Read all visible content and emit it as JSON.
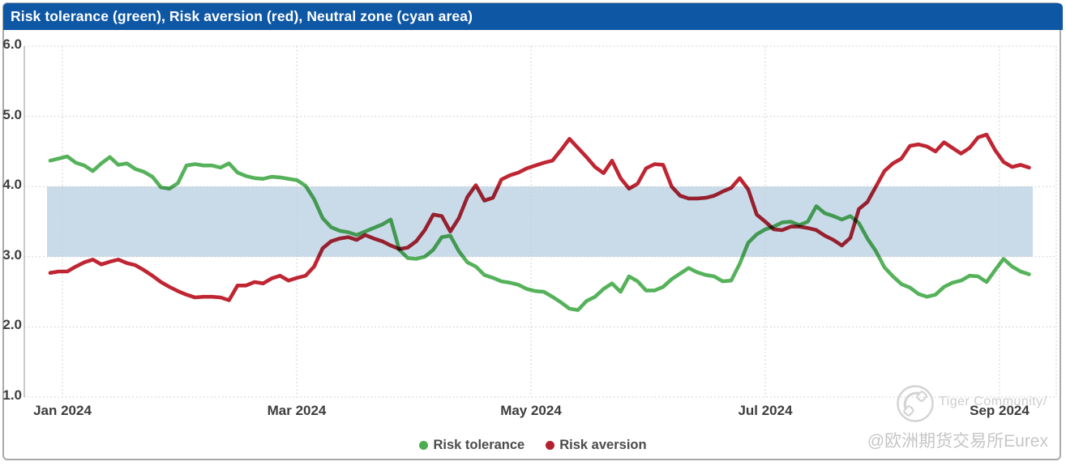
{
  "header": {
    "title": "Risk tolerance (green), Risk aversion (red), Neutral zone (cyan area)",
    "bar_color": "#0e57a5"
  },
  "chart_data": {
    "type": "line",
    "title": "Risk tolerance (green), Risk aversion (red), Neutral zone (cyan area)",
    "xlabel": "",
    "ylabel": "",
    "ylim": [
      1.0,
      6.0
    ],
    "grid": true,
    "y_tick_labels": [
      "6.0",
      "5.0",
      "4.0",
      "3.0",
      "2.0",
      "1.0"
    ],
    "y_tick_values": [
      6,
      5,
      4,
      3,
      2,
      1
    ],
    "x_tick_labels": [
      "Jan 2024",
      "Mar 2024",
      "May 2024",
      "Jul 2024",
      "Sep 2024"
    ],
    "x_span": {
      "start": "late Dec 2023",
      "end": "early Sep 2024",
      "points_spacing_days": 2.2
    },
    "neutral_zone": {
      "label": "Neutral zone",
      "from": 3.0,
      "to": 4.0,
      "color": "#c9dbe9"
    },
    "legend_position": "bottom-center",
    "series": [
      {
        "name": "Risk tolerance",
        "color": "#55b25a",
        "values": [
          4.37,
          4.4,
          4.43,
          4.34,
          4.3,
          4.22,
          4.33,
          4.42,
          4.31,
          4.33,
          4.25,
          4.21,
          4.14,
          3.99,
          3.97,
          4.05,
          4.3,
          4.32,
          4.3,
          4.3,
          4.27,
          4.33,
          4.2,
          4.15,
          4.12,
          4.11,
          4.14,
          4.13,
          4.11,
          4.09,
          4.01,
          3.82,
          3.55,
          3.42,
          3.37,
          3.35,
          3.31,
          3.36,
          3.41,
          3.46,
          3.53,
          3.1,
          2.98,
          2.97,
          3.0,
          3.1,
          3.28,
          3.3,
          3.08,
          2.92,
          2.86,
          2.74,
          2.7,
          2.65,
          2.63,
          2.6,
          2.54,
          2.51,
          2.5,
          2.43,
          2.35,
          2.26,
          2.24,
          2.37,
          2.43,
          2.54,
          2.62,
          2.5,
          2.72,
          2.65,
          2.52,
          2.52,
          2.57,
          2.68,
          2.76,
          2.84,
          2.78,
          2.74,
          2.72,
          2.65,
          2.66,
          2.9,
          3.2,
          3.32,
          3.39,
          3.43,
          3.49,
          3.5,
          3.45,
          3.5,
          3.72,
          3.62,
          3.58,
          3.53,
          3.58,
          3.48,
          3.26,
          3.08,
          2.85,
          2.72,
          2.61,
          2.56,
          2.47,
          2.43,
          2.46,
          2.57,
          2.63,
          2.66,
          2.73,
          2.72,
          2.64,
          2.81,
          2.97,
          2.86,
          2.79,
          2.75
        ]
      },
      {
        "name": "Risk aversion",
        "color": "#bf2532",
        "values": [
          2.77,
          2.79,
          2.79,
          2.86,
          2.92,
          2.96,
          2.89,
          2.93,
          2.96,
          2.91,
          2.88,
          2.81,
          2.73,
          2.64,
          2.57,
          2.51,
          2.46,
          2.42,
          2.43,
          2.43,
          2.42,
          2.38,
          2.59,
          2.59,
          2.64,
          2.62,
          2.69,
          2.73,
          2.66,
          2.7,
          2.73,
          2.86,
          3.12,
          3.22,
          3.26,
          3.28,
          3.24,
          3.31,
          3.26,
          3.22,
          3.16,
          3.11,
          3.13,
          3.22,
          3.38,
          3.6,
          3.58,
          3.36,
          3.55,
          3.85,
          4.02,
          3.8,
          3.84,
          4.1,
          4.16,
          4.2,
          4.26,
          4.3,
          4.34,
          4.37,
          4.52,
          4.68,
          4.55,
          4.42,
          4.28,
          4.19,
          4.37,
          4.12,
          3.97,
          4.04,
          4.26,
          4.32,
          4.31,
          4.0,
          3.87,
          3.83,
          3.83,
          3.84,
          3.87,
          3.93,
          3.98,
          4.12,
          3.96,
          3.6,
          3.5,
          3.39,
          3.38,
          3.43,
          3.43,
          3.41,
          3.38,
          3.3,
          3.24,
          3.16,
          3.27,
          3.68,
          3.78,
          4.0,
          4.22,
          4.33,
          4.4,
          4.58,
          4.6,
          4.57,
          4.5,
          4.63,
          4.55,
          4.47,
          4.55,
          4.7,
          4.74,
          4.52,
          4.35,
          4.28,
          4.31,
          4.27
        ]
      }
    ],
    "grid_color": "#c9c9c9",
    "spine_color": "#b3b3b3"
  },
  "legend": {
    "items": [
      {
        "label": "Risk tolerance",
        "color": "#4cae50"
      },
      {
        "label": "Risk aversion",
        "color": "#b3212e"
      }
    ]
  },
  "watermark": {
    "community": "Tiger Community/",
    "account": "@欧洲期货交易所Eurex"
  }
}
